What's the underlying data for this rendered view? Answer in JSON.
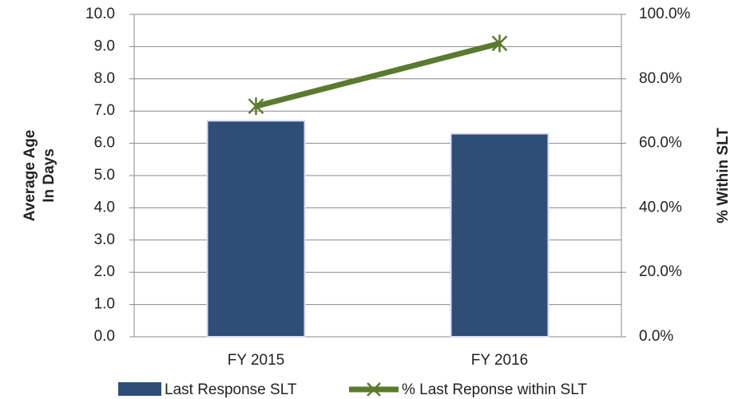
{
  "chart_data": {
    "type": "bar_line",
    "categories": [
      "FY 2015",
      "FY 2016"
    ],
    "series": [
      {
        "name": "Last Response SLT",
        "color": "#2e4e78",
        "values": [
          6.7,
          6.3
        ],
        "type": "bar"
      },
      {
        "name": "% Last Reponse within SLT",
        "color": "#5b7a2e",
        "values": [
          71.5,
          91
        ],
        "type": "line",
        "axis": "y2"
      }
    ],
    "y_label_lines": [
      "Average Age",
      "In Days"
    ],
    "y2_label": "% Within SLT",
    "ylim": [
      0,
      10
    ],
    "yticks": [
      {
        "value": 0,
        "label": "0.0"
      },
      {
        "value": 1,
        "label": "1.0"
      },
      {
        "value": 2,
        "label": "2.0"
      },
      {
        "value": 3,
        "label": "3.0"
      },
      {
        "value": 4,
        "label": "4.0"
      },
      {
        "value": 5,
        "label": "5.0"
      },
      {
        "value": 6,
        "label": "6.0"
      },
      {
        "value": 7,
        "label": "7.0"
      },
      {
        "value": 8,
        "label": "8.0"
      },
      {
        "value": 9,
        "label": "9.0"
      },
      {
        "value": 10,
        "label": "10.0"
      }
    ],
    "y2lim": [
      0,
      100
    ],
    "y2ticks": [
      {
        "value": 0,
        "label": "0.0%"
      },
      {
        "value": 20,
        "label": "20.0%"
      },
      {
        "value": 40,
        "label": "40.0%"
      },
      {
        "value": 60,
        "label": "60.0%"
      },
      {
        "value": 80,
        "label": "80.0%"
      },
      {
        "value": 100,
        "label": "100.0%"
      }
    ],
    "grid": true,
    "legend": "bottom"
  }
}
